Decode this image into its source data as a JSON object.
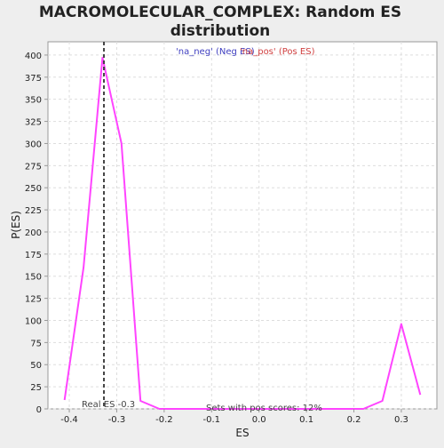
{
  "chart_data": {
    "type": "line",
    "title_lines": [
      "MACROMOLECULAR_COMPLEX: Random ES",
      "distribution"
    ],
    "xlabel": "ES",
    "ylabel": "P(ES)",
    "xlim": [
      -0.445,
      0.375
    ],
    "ylim": [
      0,
      415
    ],
    "grid": true,
    "legend_position": "top-center",
    "legend": [
      {
        "label": "'na_neg' (Neg ES)",
        "color": "#4040c0"
      },
      {
        "label": "'na_pos' (Pos ES)",
        "color": "#d04040"
      }
    ],
    "x_ticks": [
      {
        "value": -0.4,
        "label": "-0.4"
      },
      {
        "value": -0.3,
        "label": "-0.3"
      },
      {
        "value": -0.2,
        "label": "-0.2"
      },
      {
        "value": -0.1,
        "label": "-0.1"
      },
      {
        "value": 0.0,
        "label": "0.0"
      },
      {
        "value": 0.1,
        "label": "0.1"
      },
      {
        "value": 0.2,
        "label": "0.2"
      },
      {
        "value": 0.3,
        "label": "0.3"
      }
    ],
    "y_ticks": [
      {
        "value": 0,
        "label": "0"
      },
      {
        "value": 25,
        "label": "25"
      },
      {
        "value": 50,
        "label": "50"
      },
      {
        "value": 75,
        "label": "75"
      },
      {
        "value": 100,
        "label": "100"
      },
      {
        "value": 125,
        "label": "125"
      },
      {
        "value": 150,
        "label": "150"
      },
      {
        "value": 175,
        "label": "175"
      },
      {
        "value": 200,
        "label": "200"
      },
      {
        "value": 225,
        "label": "225"
      },
      {
        "value": 250,
        "label": "250"
      },
      {
        "value": 275,
        "label": "275"
      },
      {
        "value": 300,
        "label": "300"
      },
      {
        "value": 325,
        "label": "325"
      },
      {
        "value": 350,
        "label": "350"
      },
      {
        "value": 375,
        "label": "375"
      },
      {
        "value": 400,
        "label": "400"
      }
    ],
    "series": [
      {
        "color": "#ff44ff",
        "x": [
          -0.41,
          -0.37,
          -0.33,
          -0.29,
          -0.25,
          -0.21,
          -0.17,
          -0.13,
          -0.09,
          -0.05,
          -0.01,
          0.03,
          0.07,
          0.11,
          0.15,
          0.19,
          0.22,
          0.26,
          0.3,
          0.34
        ],
        "y": [
          10,
          160,
          397,
          300,
          9,
          0,
          0,
          0,
          0,
          0,
          0,
          0,
          0,
          0,
          0,
          0,
          0,
          9,
          96,
          16
        ]
      }
    ],
    "reference_line": {
      "x": -0.327,
      "label": "Real ES -0.3",
      "color": "#444444"
    },
    "annotation": "Sets with pos scores: 12%",
    "colors": {
      "background": "#eeeeee",
      "plot_background": "#ffffff",
      "grid": "#dddddd",
      "axis": "#999999",
      "text": "#222222"
    }
  }
}
